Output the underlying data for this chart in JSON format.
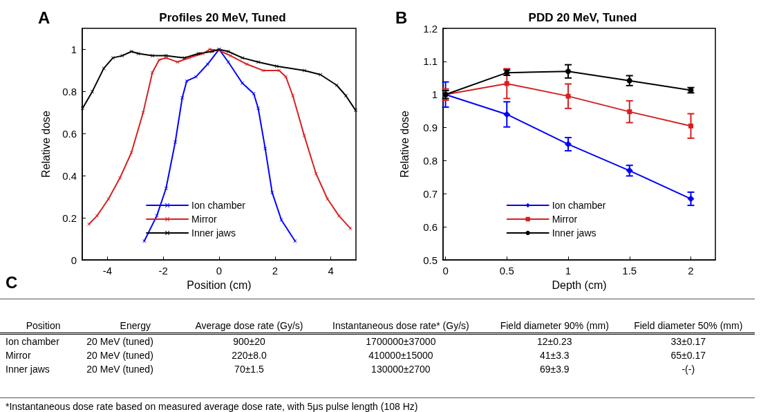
{
  "chart_data": [
    {
      "type": "line",
      "title": "Profiles 20 MeV, Tuned",
      "xlabel": "Position (cm)",
      "ylabel": "Relative dose",
      "annotations": [
        "A"
      ],
      "xlim": [
        -4.9,
        4.9
      ],
      "xticks": [
        -4,
        -2,
        0,
        2,
        4
      ],
      "ylim": [
        0,
        1.1
      ],
      "yticks": [
        0,
        0.2,
        0.4,
        0.6,
        0.8,
        1
      ],
      "grid": false,
      "legend": "bottom",
      "marker": "cross",
      "line_style": "solid",
      "series": [
        {
          "name": "Ion chamber",
          "color": "#0000ff",
          "x": [
            -2.68,
            -2.23,
            -1.9,
            -1.57,
            -1.32,
            -1.16,
            -0.83,
            -0.41,
            0,
            0.33,
            0.83,
            1.24,
            1.4,
            1.65,
            1.9,
            2.23,
            2.72
          ],
          "values": [
            0.09,
            0.21,
            0.34,
            0.56,
            0.77,
            0.85,
            0.87,
            0.93,
            1.0,
            0.94,
            0.84,
            0.79,
            0.72,
            0.53,
            0.32,
            0.19,
            0.09
          ]
        },
        {
          "name": "Mirror",
          "color": "#d62020",
          "x": [
            -4.66,
            -4.37,
            -3.96,
            -3.55,
            -3.14,
            -2.72,
            -2.39,
            -2.15,
            -1.9,
            -1.49,
            -1.07,
            -0.58,
            -0.33,
            0,
            0.41,
            0.99,
            1.57,
            2.15,
            2.39,
            2.64,
            3.05,
            3.47,
            3.88,
            4.29,
            4.7
          ],
          "values": [
            0.17,
            0.21,
            0.29,
            0.39,
            0.51,
            0.7,
            0.89,
            0.95,
            0.96,
            0.94,
            0.96,
            0.98,
            1.0,
            0.995,
            0.97,
            0.93,
            0.9,
            0.9,
            0.87,
            0.78,
            0.59,
            0.41,
            0.29,
            0.21,
            0.15
          ]
        },
        {
          "name": "Inner jaws",
          "color": "#000000",
          "x": [
            -4.89,
            -4.54,
            -4.13,
            -3.8,
            -3.47,
            -3.14,
            -2.89,
            -2.39,
            -1.9,
            -1.24,
            -0.74,
            -0.25,
            0,
            0.33,
            0.83,
            1.4,
            2.06,
            3.05,
            3.63,
            4.21,
            4.54,
            4.89
          ],
          "values": [
            0.72,
            0.8,
            0.91,
            0.96,
            0.97,
            0.99,
            0.98,
            0.97,
            0.97,
            0.96,
            0.98,
            0.99,
            1.0,
            0.99,
            0.96,
            0.94,
            0.92,
            0.9,
            0.88,
            0.83,
            0.78,
            0.71
          ]
        }
      ]
    },
    {
      "type": "line",
      "title": "PDD 20 MeV, Tuned",
      "xlabel": "Depth (cm)",
      "ylabel": "Relative dose",
      "annotations": [
        "B"
      ],
      "xlim": [
        -0.02,
        2.2
      ],
      "xticks": [
        0,
        0.5,
        1,
        1.5,
        2
      ],
      "ylim": [
        0.5,
        1.2
      ],
      "yticks": [
        0.5,
        0.6,
        0.7,
        0.8,
        0.9,
        1,
        1.1,
        1.2
      ],
      "grid": false,
      "legend": "bottom",
      "line_style": "solid",
      "x": [
        0,
        0.5,
        1,
        1.5,
        2
      ],
      "series": [
        {
          "name": "Ion chamber",
          "color": "#0000ff",
          "marker": "diamond",
          "values": [
            1.0,
            0.94,
            0.85,
            0.77,
            0.685
          ],
          "errors": [
            0.038,
            0.038,
            0.02,
            0.016,
            0.02
          ]
        },
        {
          "name": "Mirror",
          "color": "#d62020",
          "marker": "square",
          "values": [
            1.0,
            1.033,
            0.995,
            0.948,
            0.905
          ],
          "errors": [
            0.017,
            0.045,
            0.037,
            0.033,
            0.037
          ]
        },
        {
          "name": "Inner jaws",
          "color": "#000000",
          "marker": "circle",
          "values": [
            1.0,
            1.066,
            1.07,
            1.042,
            1.013
          ],
          "errors": [
            0.012,
            0.008,
            0.02,
            0.015,
            0.008
          ]
        }
      ]
    },
    {
      "type": "other",
      "annotations": [
        "C",
        "Position",
        "Energy",
        "Average dose rate (Gy/s)",
        "Instantaneous dose rate* (Gy/s)",
        "Field diameter 90% (mm)",
        "Field diameter 50% (mm)",
        "Ion chamber",
        "20 MeV (tuned)",
        "900±20",
        "1700000±37000",
        "12±0.23",
        "33±0.17",
        "Mirror",
        "20 MeV (tuned)",
        "220±8.0",
        "410000±15000",
        "41±3.3",
        "65±0.17",
        "Inner jaws",
        "20 MeV (tuned)",
        "70±1.5",
        "130000±2700",
        "69±3.9",
        "-(-)",
        "*Instantaneous dose rate based on measured average dose rate, with 5μs pulse length (108 Hz)"
      ]
    }
  ]
}
